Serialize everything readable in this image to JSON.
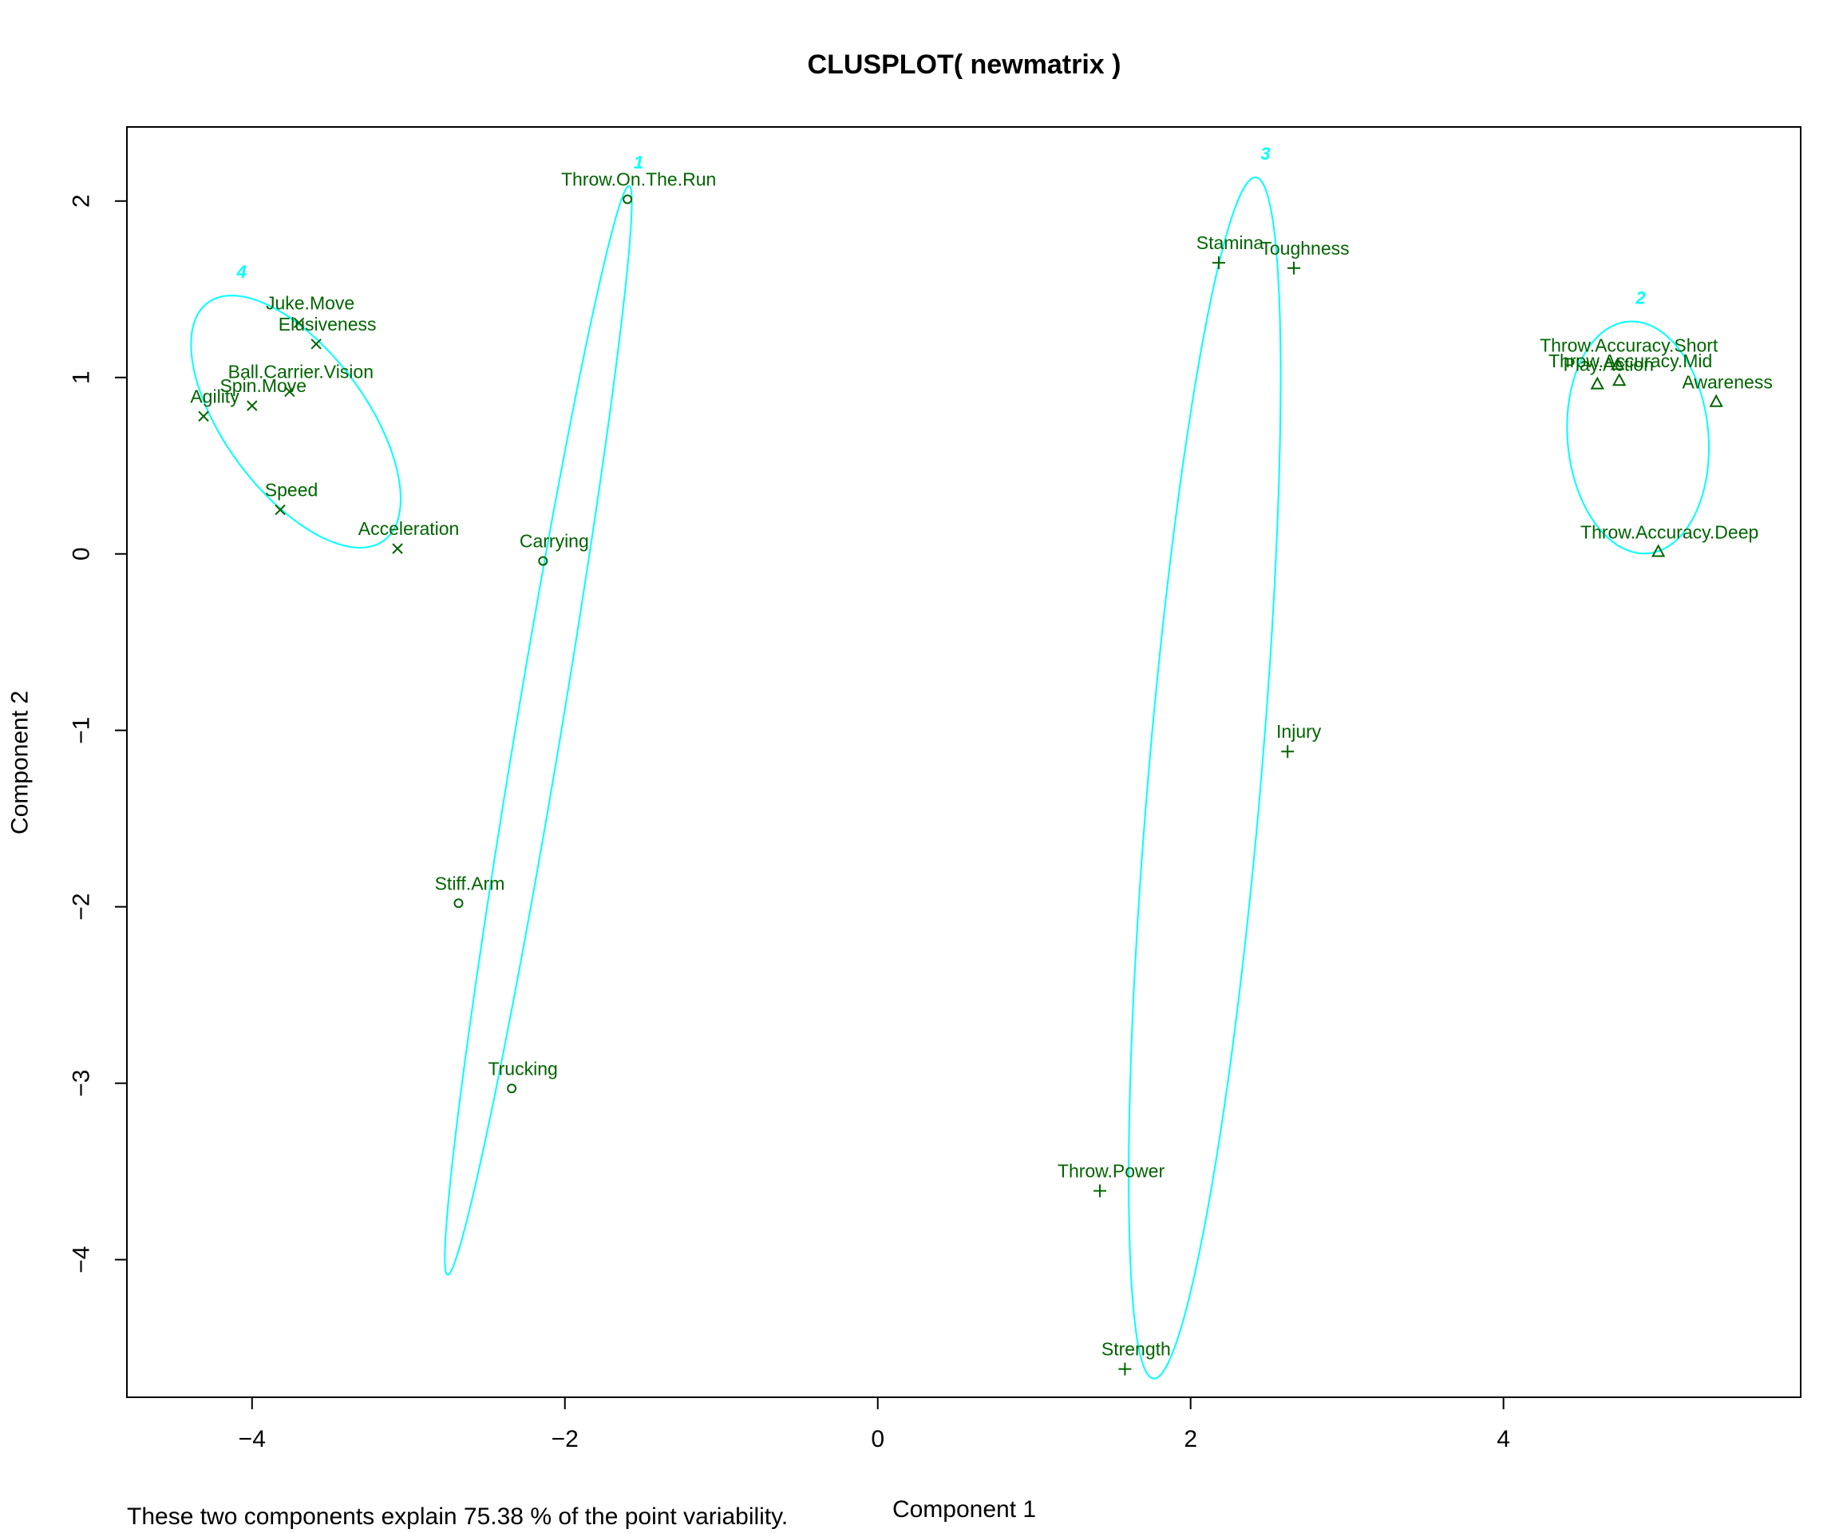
{
  "chart_data": {
    "type": "scatter",
    "title": "CLUSPLOT( newmatrix )",
    "xlabel": "Component 1",
    "ylabel": "Component 2",
    "footnote": "These two components explain 75.38 % of the point variability.",
    "xlim": [
      -4.8,
      5.9
    ],
    "ylim": [
      -4.78,
      2.42
    ],
    "xticks": [
      -4,
      -2,
      0,
      2,
      4
    ],
    "yticks": [
      -4,
      -3,
      -2,
      -1,
      0,
      1,
      2
    ],
    "grid": false,
    "colors": {
      "points": "#006400",
      "ellipses": "#00FFFF",
      "cluster_labels": "#00FFFF",
      "axes": "#000000"
    },
    "clusters": [
      {
        "id": "1",
        "marker": "circle",
        "ellipse": {
          "cx": -2.17,
          "cy": -1.0,
          "a": 3.14,
          "b": 0.145,
          "angle_deg": 79.35
        },
        "points": [
          {
            "label": "Throw.On.The.Run",
            "x": -1.6,
            "y": 2.01
          },
          {
            "label": "Carrying",
            "x": -2.14,
            "y": -0.04
          },
          {
            "label": "Stiff.Arm",
            "x": -2.68,
            "y": -1.98
          },
          {
            "label": "Trucking",
            "x": -2.34,
            "y": -3.03
          }
        ]
      },
      {
        "id": "2",
        "marker": "triangle",
        "ellipse": {
          "cx": 4.86,
          "cy": 0.66,
          "a": 0.66,
          "b": 0.45,
          "angle_deg": 96.5
        },
        "points": [
          {
            "label": "Throw.Accuracy.Short",
            "x": 4.73,
            "y": 1.07
          },
          {
            "label": "Throw.Accuracy.Mid",
            "x": 4.74,
            "y": 0.98
          },
          {
            "label": "Play.Action",
            "x": 4.6,
            "y": 0.96
          },
          {
            "label": "Awareness",
            "x": 5.36,
            "y": 0.86
          },
          {
            "label": "Throw.Accuracy.Deep",
            "x": 4.99,
            "y": 0.01
          }
        ]
      },
      {
        "id": "3",
        "marker": "plus",
        "ellipse": {
          "cx": 2.09,
          "cy": -1.27,
          "a": 3.42,
          "b": 0.36,
          "angle_deg": 84.5
        },
        "points": [
          {
            "label": "Stamina",
            "x": 2.18,
            "y": 1.65
          },
          {
            "label": "Toughness",
            "x": 2.66,
            "y": 1.62
          },
          {
            "label": "Injury",
            "x": 2.62,
            "y": -1.12
          },
          {
            "label": "Throw.Power",
            "x": 1.42,
            "y": -3.61
          },
          {
            "label": "Strength",
            "x": 1.58,
            "y": -4.62
          }
        ]
      },
      {
        "id": "4",
        "marker": "x",
        "ellipse": {
          "cx": -3.72,
          "cy": 0.75,
          "a": 0.88,
          "b": 0.43,
          "angle_deg": -48.0
        },
        "points": [
          {
            "label": "Juke.Move",
            "x": -3.7,
            "y": 1.31
          },
          {
            "label": "Elusiveness",
            "x": -3.59,
            "y": 1.19
          },
          {
            "label": "Ball.Carrier.Vision",
            "x": -3.76,
            "y": 0.92
          },
          {
            "label": "Spin.Move",
            "x": -4.0,
            "y": 0.84
          },
          {
            "label": "Agility",
            "x": -4.31,
            "y": 0.78
          },
          {
            "label": "Speed",
            "x": -3.82,
            "y": 0.25
          },
          {
            "label": "Acceleration",
            "x": -3.07,
            "y": 0.03
          }
        ]
      }
    ]
  }
}
